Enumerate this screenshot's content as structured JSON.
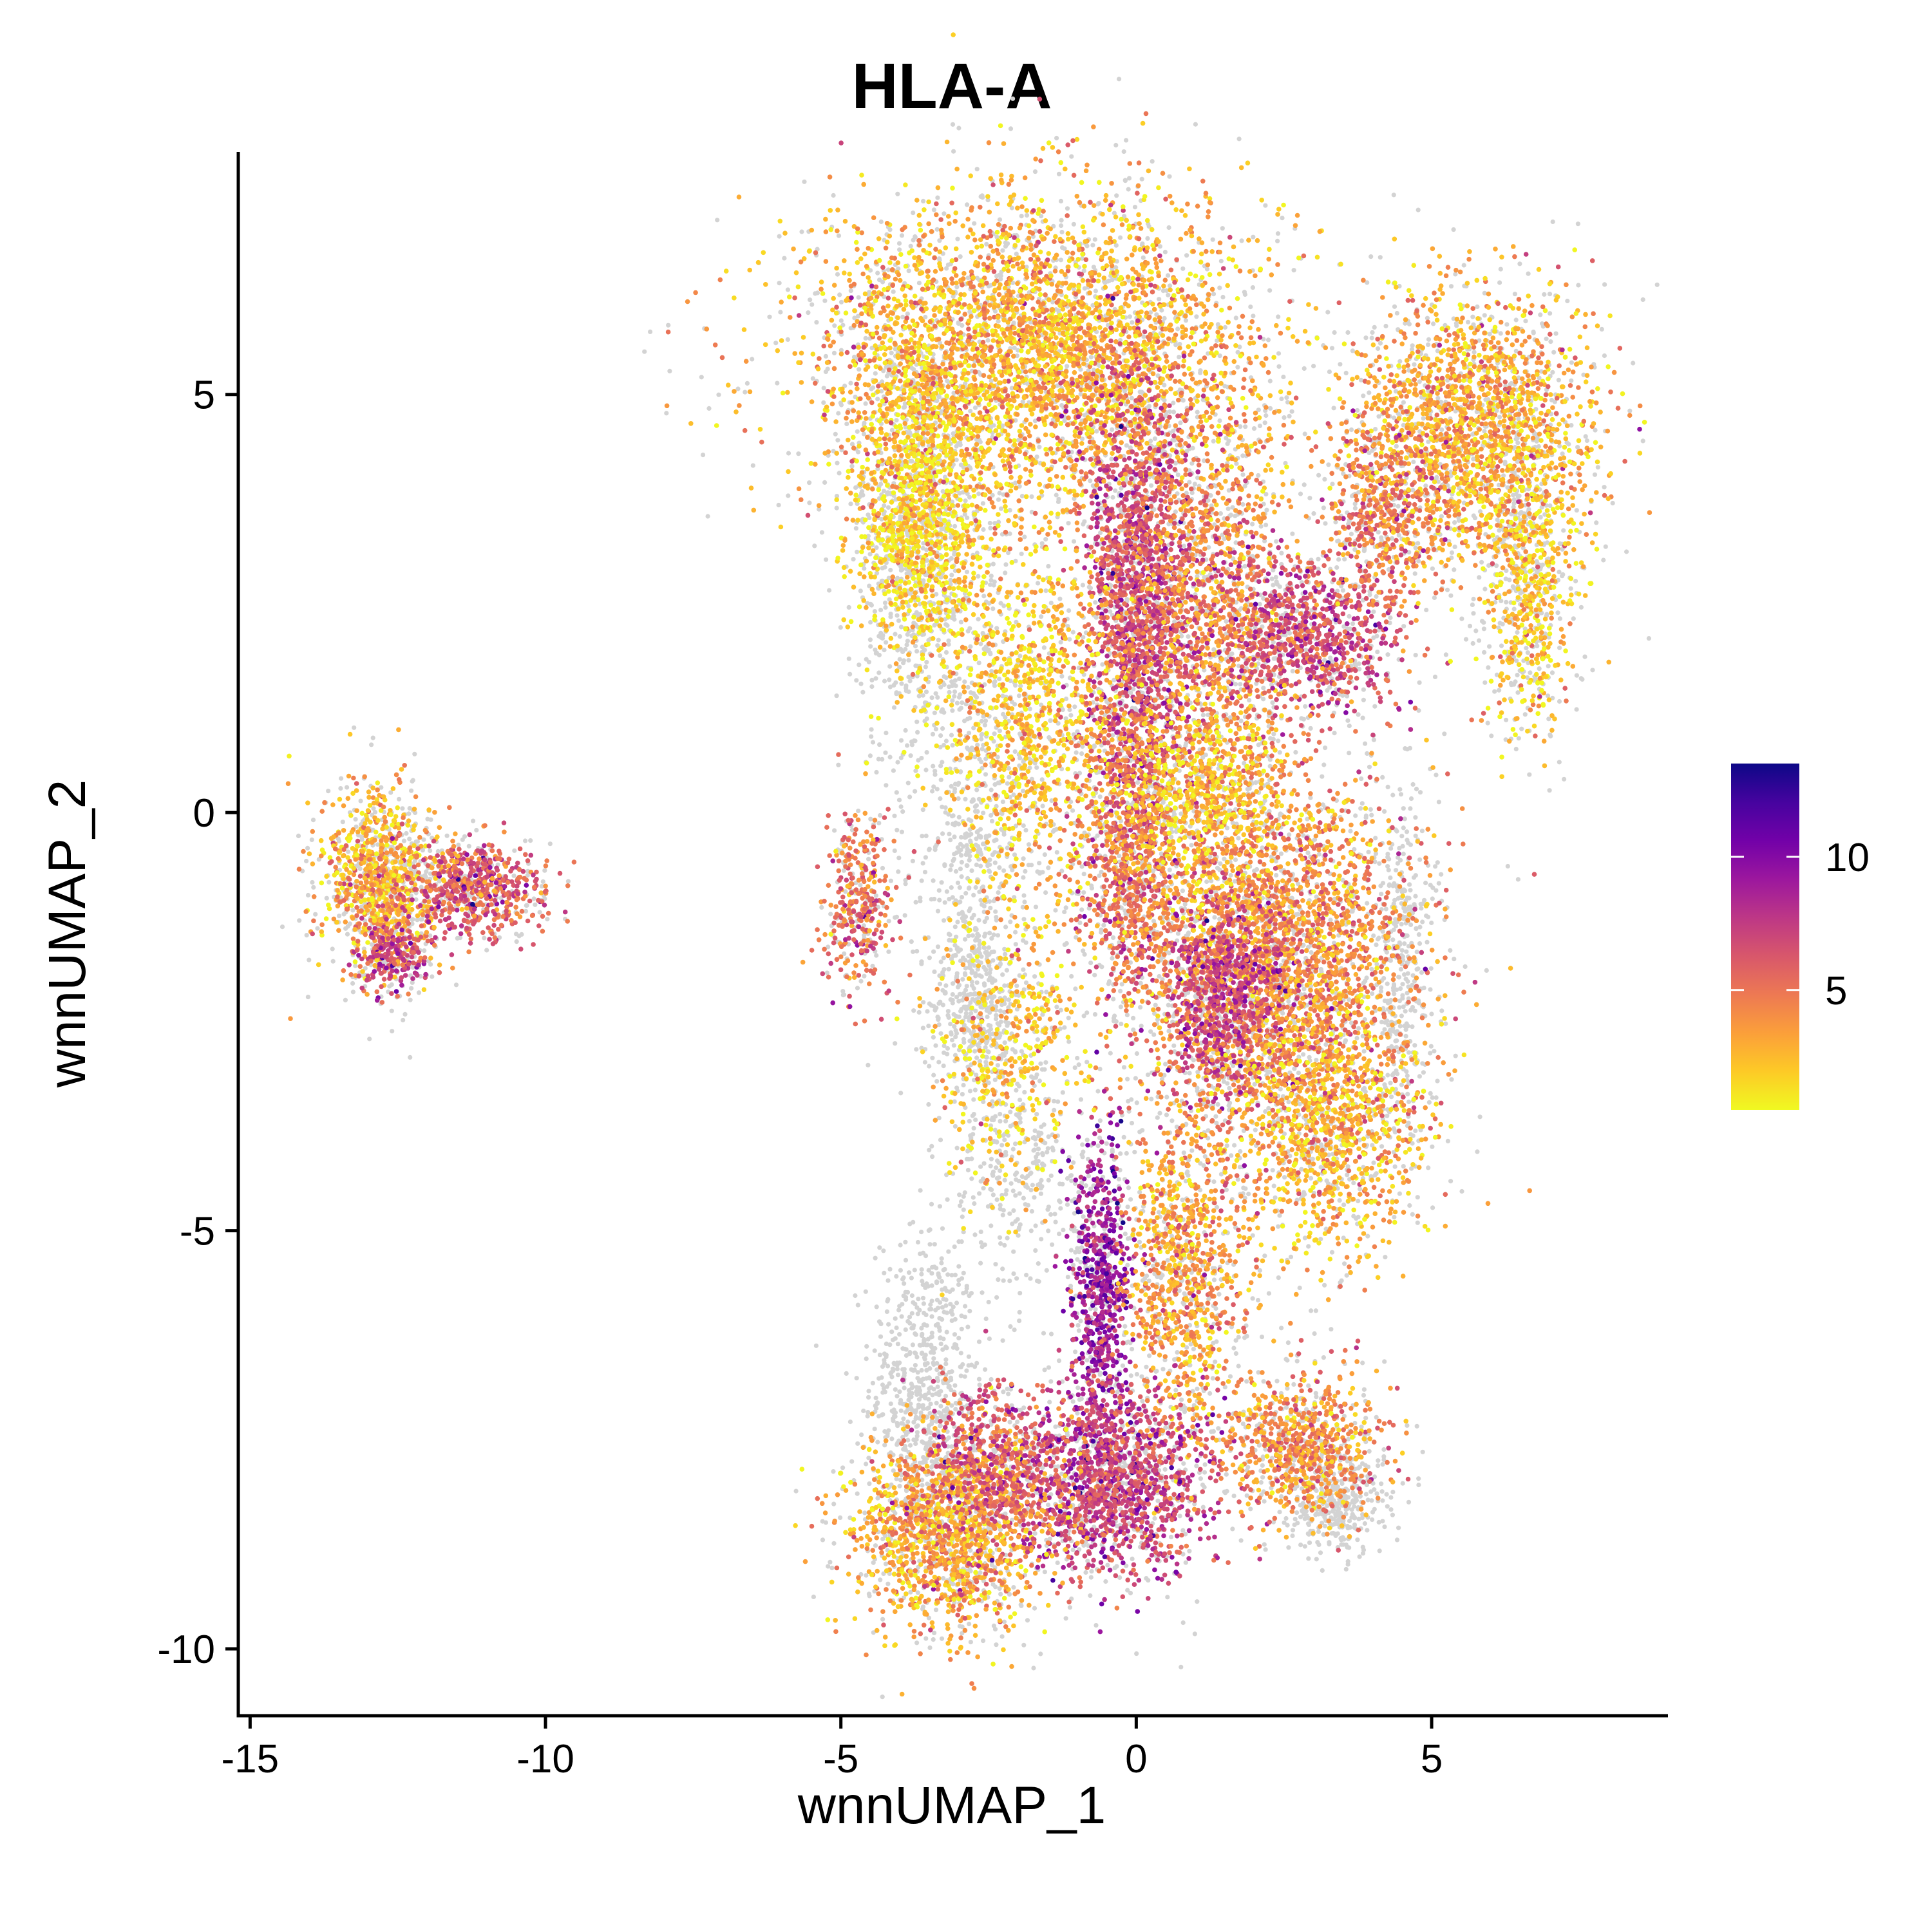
{
  "chart_data": {
    "type": "scatter",
    "title": "HLA-A",
    "xlabel": "wnnUMAP_1",
    "ylabel": "wnnUMAP_2",
    "xlim": [
      -15.2,
      9.0
    ],
    "ylim": [
      -10.8,
      7.9
    ],
    "x_ticks": [
      -15,
      -10,
      -5,
      0,
      5
    ],
    "x_tick_labels": [
      "-15",
      "-10",
      "-5",
      "0",
      "5"
    ],
    "y_ticks": [
      -10,
      -5,
      0,
      5
    ],
    "y_tick_labels": [
      "-10",
      "-5",
      "0",
      "5"
    ],
    "grid": false,
    "legend": {
      "position": "right",
      "type": "colorbar",
      "range": [
        0.5,
        13.5
      ],
      "ticks": [
        5,
        10
      ],
      "tick_labels": [
        "5",
        "10"
      ],
      "colormap": [
        "#f0f921",
        "#fdca26",
        "#fb9f3a",
        "#ed7953",
        "#d8576b",
        "#bd3786",
        "#9c179e",
        "#7201a8",
        "#46039f",
        "#0d0887"
      ]
    },
    "background_color": "#d3d3d3",
    "clusters": [
      {
        "x": -12.8,
        "y": -0.8,
        "sx": 0.45,
        "sy": 0.55,
        "n": 700,
        "level": 2.8
      },
      {
        "x": -12.6,
        "y": -1.7,
        "sx": 0.3,
        "sy": 0.2,
        "n": 200,
        "level": 7.0
      },
      {
        "x": -11.2,
        "y": -0.9,
        "sx": 0.55,
        "sy": 0.3,
        "n": 550,
        "level": 6.0
      },
      {
        "x": -1.8,
        "y": 5.5,
        "sx": 1.9,
        "sy": 0.9,
        "n": 3200,
        "level": 2.8
      },
      {
        "x": -3.6,
        "y": 3.6,
        "sx": 0.55,
        "sy": 1.0,
        "n": 1100,
        "level": 1.6
      },
      {
        "x": 0.0,
        "y": 2.6,
        "sx": 0.5,
        "sy": 1.3,
        "n": 1700,
        "level": 6.5
      },
      {
        "x": 1.3,
        "y": 2.5,
        "sx": 0.6,
        "sy": 1.2,
        "n": 900,
        "level": 4.0
      },
      {
        "x": 2.9,
        "y": 2.1,
        "sx": 0.8,
        "sy": 0.5,
        "n": 800,
        "level": 6.5
      },
      {
        "x": 5.7,
        "y": 4.6,
        "sx": 1.0,
        "sy": 0.8,
        "n": 1600,
        "level": 3.0
      },
      {
        "x": 6.7,
        "y": 2.6,
        "sx": 0.4,
        "sy": 0.9,
        "n": 450,
        "level": 2.0
      },
      {
        "x": 4.2,
        "y": 3.6,
        "sx": 0.5,
        "sy": 0.5,
        "n": 400,
        "level": 5.0
      },
      {
        "x": -1.8,
        "y": 1.0,
        "sx": 0.7,
        "sy": 1.1,
        "n": 900,
        "level": 2.2
      },
      {
        "x": -0.1,
        "y": -0.6,
        "sx": 0.4,
        "sy": 0.9,
        "n": 700,
        "level": 5.0
      },
      {
        "x": 2.4,
        "y": -1.8,
        "sx": 1.2,
        "sy": 1.2,
        "n": 2600,
        "level": 4.0
      },
      {
        "x": 1.5,
        "y": -2.2,
        "sx": 0.5,
        "sy": 0.6,
        "n": 700,
        "level": 7.0
      },
      {
        "x": 3.3,
        "y": -3.8,
        "sx": 0.8,
        "sy": 0.7,
        "n": 800,
        "level": 2.6
      },
      {
        "x": 1.0,
        "y": 0.2,
        "sx": 0.7,
        "sy": 0.6,
        "n": 600,
        "level": 2.0
      },
      {
        "x": -0.6,
        "y": -5.6,
        "sx": 0.25,
        "sy": 0.9,
        "n": 600,
        "level": 9.0
      },
      {
        "x": 0.8,
        "y": -5.5,
        "sx": 0.5,
        "sy": 0.9,
        "n": 800,
        "level": 3.5
      },
      {
        "x": -0.4,
        "y": -8.0,
        "sx": 0.8,
        "sy": 0.55,
        "n": 1300,
        "level": 7.0
      },
      {
        "x": -3.2,
        "y": -8.6,
        "sx": 0.8,
        "sy": 0.6,
        "n": 1200,
        "level": 3.0
      },
      {
        "x": -2.5,
        "y": -7.8,
        "sx": 0.6,
        "sy": 0.5,
        "n": 500,
        "level": 6.0
      },
      {
        "x": 2.8,
        "y": -7.6,
        "sx": 0.7,
        "sy": 0.45,
        "n": 700,
        "level": 4.0
      },
      {
        "x": -4.7,
        "y": -1.1,
        "sx": 0.3,
        "sy": 0.6,
        "n": 300,
        "level": 5.0
      },
      {
        "x": -2.2,
        "y": -2.8,
        "sx": 0.6,
        "sy": 0.8,
        "n": 400,
        "level": 2.0
      }
    ],
    "background_clusters": [
      {
        "x": -3.6,
        "y": -6.8,
        "sx": 0.45,
        "sy": 0.9,
        "n": 600
      },
      {
        "x": -2.8,
        "y": -0.5,
        "sx": 0.4,
        "sy": 1.2,
        "n": 400
      },
      {
        "x": -2.7,
        "y": -2.3,
        "sx": 0.4,
        "sy": 0.5,
        "n": 300
      },
      {
        "x": -2.0,
        "y": -4.2,
        "sx": 0.6,
        "sy": 0.9,
        "n": 300
      },
      {
        "x": -3.7,
        "y": 3.0,
        "sx": 0.5,
        "sy": 1.4,
        "n": 600
      },
      {
        "x": 3.4,
        "y": -8.3,
        "sx": 0.4,
        "sy": 0.3,
        "n": 300
      },
      {
        "x": 4.5,
        "y": -1.8,
        "sx": 0.3,
        "sy": 1.0,
        "n": 300
      },
      {
        "x": 6.5,
        "y": 3.0,
        "sx": 0.3,
        "sy": 0.8,
        "n": 200
      },
      {
        "x": -12.7,
        "y": -0.9,
        "sx": 0.5,
        "sy": 0.5,
        "n": 150
      }
    ]
  }
}
